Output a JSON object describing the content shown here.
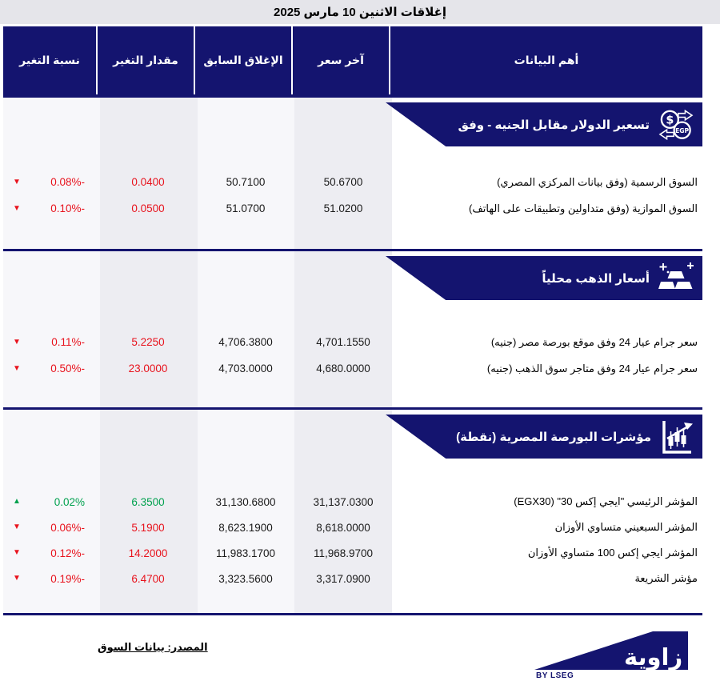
{
  "title": "إغلاقات الاثنين 10 مارس 2025",
  "columns": {
    "data": "أهم البيانات",
    "last": "آخر سعر",
    "prev": "الإغلاق السابق",
    "change": "مقدار التغير",
    "pct": "نسبة التغير"
  },
  "sections": [
    {
      "title": "تسعير  الدولار مقابل الجنيه - وفق",
      "icon": "currency-exchange-icon",
      "rows": [
        {
          "label": "السوق الرسمية (وفق بيانات المركزي المصري)",
          "last": "50.6700",
          "prev": "50.7100",
          "change": "0.0400",
          "pct": "-0.08%",
          "direction": "down"
        },
        {
          "label": "السوق الموازية (وفق متداولين وتطبيقات على الهاتف)",
          "last": "51.0200",
          "prev": "51.0700",
          "change": "0.0500",
          "pct": "-0.10%",
          "direction": "down"
        }
      ]
    },
    {
      "title": "أسعار الذهب محلياً",
      "icon": "gold-bars-icon",
      "rows": [
        {
          "label": "سعر جرام عيار 24 وفق موقع بورصة مصر (جنيه)",
          "last": "4,701.1550",
          "prev": "4,706.3800",
          "change": "5.2250",
          "pct": "-0.11%",
          "direction": "down"
        },
        {
          "label": "سعر جرام عيار 24 وفق متاجر سوق الذهب (جنيه)",
          "last": "4,680.0000",
          "prev": "4,703.0000",
          "change": "23.0000",
          "pct": "-0.50%",
          "direction": "down"
        }
      ]
    },
    {
      "title": "مؤشرات البورصة المصرية (نقطة)",
      "icon": "candlestick-chart-icon",
      "rows": [
        {
          "label": "المؤشر الرئيسي \"ايجي إكس 30\" (EGX30)",
          "last": "31,137.0300",
          "prev": "31,130.6800",
          "change": "6.3500",
          "pct": "0.02%",
          "direction": "up"
        },
        {
          "label": "المؤشر السبعيني متساوي الأوزان",
          "last": "8,618.0000",
          "prev": "8,623.1900",
          "change": "5.1900",
          "pct": "-0.06%",
          "direction": "down"
        },
        {
          "label": "المؤشر ايجي إكس 100 متساوي الأوزان",
          "last": "11,968.9700",
          "prev": "11,983.1700",
          "change": "14.2000",
          "pct": "-0.12%",
          "direction": "down"
        },
        {
          "label": "مؤشر الشريعة",
          "last": "3,317.0900",
          "prev": "3,323.5600",
          "change": "6.4700",
          "pct": "-0.19%",
          "direction": "down"
        }
      ]
    }
  ],
  "icons": {
    "arrow_up": "▲",
    "arrow_down": "▼"
  },
  "footer": {
    "source": "المصدر: بيانات السوق",
    "logo_text": "زاوية",
    "logo_sub": "BY LSEG"
  },
  "colors": {
    "navy": "#14146F",
    "red": "#E8131D",
    "green": "#00A14E",
    "title_bg": "#E5E5EA"
  }
}
